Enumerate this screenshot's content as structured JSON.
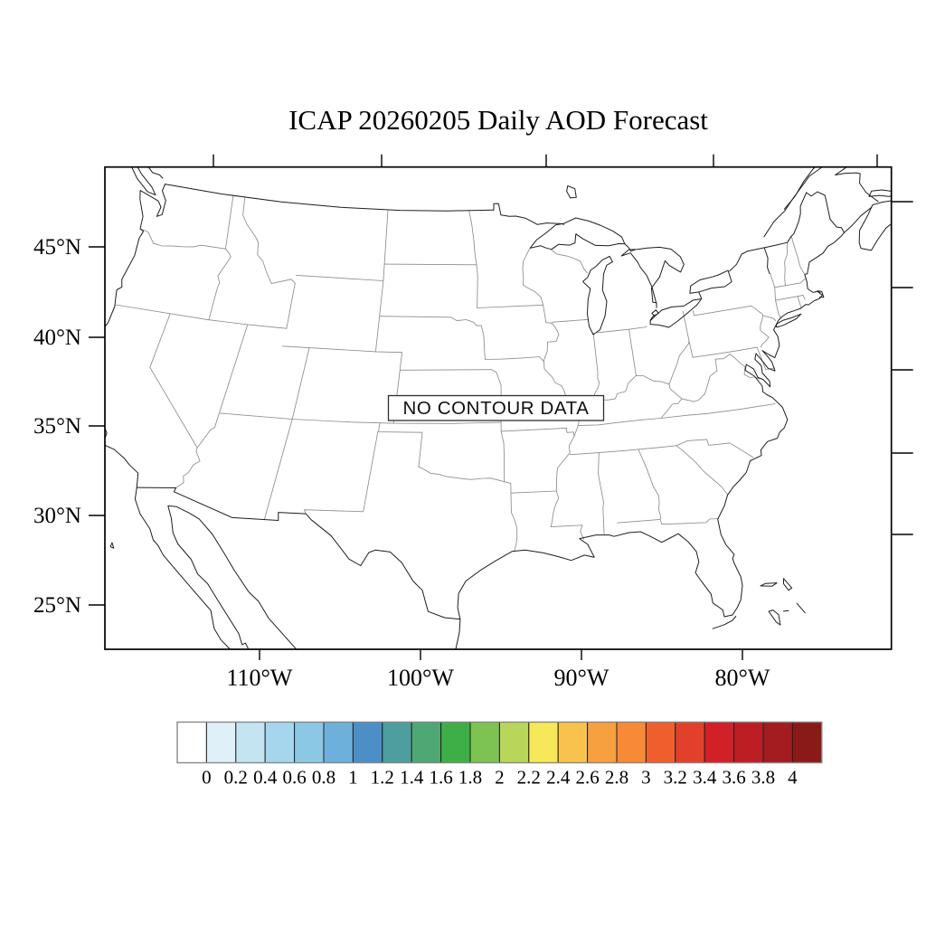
{
  "figure": {
    "title": "ICAP 20260205 Daily AOD Forecast",
    "annotation": "NO CONTOUR DATA"
  },
  "axes": {
    "lat_tick_labels": [
      "45°N",
      "40°N",
      "35°N",
      "30°N",
      "25°N"
    ],
    "lon_tick_labels": [
      "110°W",
      "100°W",
      "90°W",
      "80°W"
    ]
  },
  "colorbar": {
    "tick_labels": [
      "0",
      "0.2",
      "0.4",
      "0.6",
      "0.8",
      "1",
      "1.2",
      "1.4",
      "1.6",
      "1.8",
      "2",
      "2.2",
      "2.4",
      "2.6",
      "2.8",
      "3",
      "3.2",
      "3.4",
      "3.6",
      "3.8",
      "4"
    ],
    "colors": [
      "#FFFFFF",
      "#DFF0F8",
      "#C4E4F2",
      "#A5D6EE",
      "#8AC8E6",
      "#6CB0DB",
      "#4B8FC6",
      "#4D9E9E",
      "#4FA873",
      "#3EAF47",
      "#7CC353",
      "#B7D65A",
      "#F7E85A",
      "#F9C24D",
      "#F7A03F",
      "#F68A36",
      "#EF5F2E",
      "#E2402B",
      "#D22027",
      "#BC1E24",
      "#A31C1F",
      "#8A1A18"
    ]
  },
  "chart_data": {
    "type": "map",
    "title": "ICAP 20260205 Daily AOD Forecast",
    "region": "Continental United States with adjacent Canada, Mexico, Gulf of Mexico and western Atlantic",
    "variable": "Daily Aerosol Optical Depth (AOD) forecast",
    "annotation": "NO CONTOUR DATA",
    "contour_values_plotted": [],
    "colorbar_levels": [
      0,
      0.2,
      0.4,
      0.6,
      0.8,
      1,
      1.2,
      1.4,
      1.6,
      1.8,
      2,
      2.2,
      2.4,
      2.6,
      2.8,
      3,
      3.2,
      3.4,
      3.6,
      3.8,
      4
    ],
    "lat_ticks_deg_north": [
      45,
      40,
      35,
      30,
      25
    ],
    "lon_ticks_deg_west": [
      110,
      100,
      90,
      80
    ],
    "grid": false,
    "legend_position": "bottom horizontal labelbar"
  }
}
